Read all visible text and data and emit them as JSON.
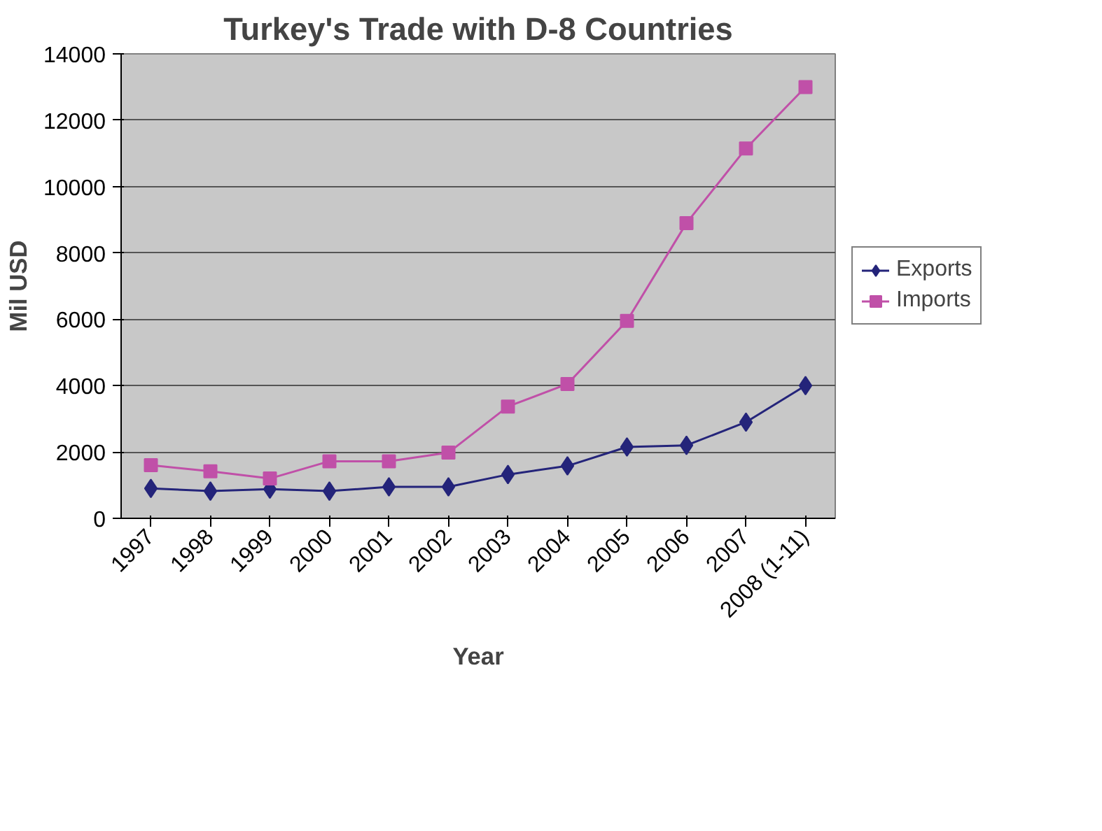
{
  "chart_data": {
    "type": "line",
    "title": "Turkey's Trade with D-8 Countries",
    "xlabel": "Year",
    "ylabel": "Mil USD",
    "categories": [
      "1997",
      "1998",
      "1999",
      "2000",
      "2001",
      "2002",
      "2003",
      "2004",
      "2005",
      "2006",
      "2007",
      "2008 (1-11)"
    ],
    "series": [
      {
        "name": "Exports",
        "color": "#24247a",
        "marker": "diamond",
        "values": [
          900,
          820,
          880,
          820,
          950,
          950,
          1320,
          1580,
          2150,
          2200,
          2900,
          4000
        ]
      },
      {
        "name": "Imports",
        "color": "#c050a8",
        "marker": "square",
        "values": [
          1600,
          1420,
          1200,
          1720,
          1720,
          1980,
          3370,
          4050,
          5950,
          8900,
          11150,
          13000
        ]
      }
    ],
    "ylim": [
      0,
      14000
    ],
    "yticks": [
      0,
      2000,
      4000,
      6000,
      8000,
      10000,
      12000,
      14000
    ],
    "grid": "y",
    "legend": "right",
    "line_style": "solid"
  }
}
